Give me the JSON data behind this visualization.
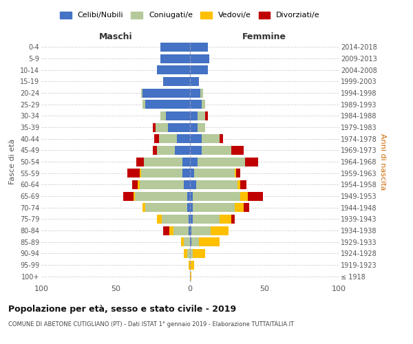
{
  "age_groups": [
    "100+",
    "95-99",
    "90-94",
    "85-89",
    "80-84",
    "75-79",
    "70-74",
    "65-69",
    "60-64",
    "55-59",
    "50-54",
    "45-49",
    "40-44",
    "35-39",
    "30-34",
    "25-29",
    "20-24",
    "15-19",
    "10-14",
    "5-9",
    "0-4"
  ],
  "birth_years": [
    "≤ 1918",
    "1919-1923",
    "1924-1928",
    "1929-1933",
    "1934-1938",
    "1939-1943",
    "1944-1948",
    "1949-1953",
    "1954-1958",
    "1959-1963",
    "1964-1968",
    "1969-1973",
    "1974-1978",
    "1979-1983",
    "1984-1988",
    "1989-1993",
    "1994-1998",
    "1999-2003",
    "2004-2008",
    "2009-2013",
    "2014-2018"
  ],
  "male": {
    "celibi": [
      0,
      0,
      0,
      0,
      1,
      1,
      2,
      2,
      4,
      5,
      5,
      10,
      9,
      15,
      16,
      30,
      32,
      18,
      22,
      20,
      20
    ],
    "coniugati": [
      0,
      0,
      2,
      4,
      10,
      18,
      28,
      35,
      30,
      28,
      26,
      12,
      12,
      8,
      4,
      2,
      1,
      0,
      0,
      0,
      0
    ],
    "vedovi": [
      0,
      1,
      2,
      2,
      3,
      3,
      2,
      1,
      1,
      1,
      0,
      0,
      0,
      0,
      0,
      0,
      0,
      0,
      0,
      0,
      0
    ],
    "divorziati": [
      0,
      0,
      0,
      0,
      4,
      0,
      0,
      7,
      4,
      8,
      5,
      3,
      3,
      2,
      0,
      0,
      0,
      0,
      0,
      0,
      0
    ]
  },
  "female": {
    "nubili": [
      0,
      0,
      0,
      1,
      1,
      2,
      2,
      2,
      4,
      3,
      5,
      8,
      8,
      5,
      5,
      8,
      7,
      6,
      12,
      13,
      12
    ],
    "coniugate": [
      0,
      0,
      2,
      5,
      13,
      18,
      28,
      32,
      28,
      27,
      32,
      20,
      12,
      5,
      5,
      2,
      2,
      0,
      0,
      0,
      0
    ],
    "vedove": [
      1,
      3,
      8,
      14,
      12,
      8,
      6,
      5,
      2,
      1,
      0,
      0,
      0,
      0,
      0,
      0,
      0,
      0,
      0,
      0,
      0
    ],
    "divorziate": [
      0,
      0,
      0,
      0,
      0,
      2,
      4,
      10,
      4,
      3,
      9,
      8,
      2,
      0,
      2,
      0,
      0,
      0,
      0,
      0,
      0
    ]
  },
  "colors": {
    "celibi": "#4472c4",
    "coniugati": "#b5c99a",
    "vedovi": "#ffc000",
    "divorziati": "#c00000"
  },
  "title": "Popolazione per età, sesso e stato civile - 2019",
  "subtitle": "COMUNE DI ABETONE CUTIGLIANO (PT) - Dati ISTAT 1° gennaio 2019 - Elaborazione TUTTAITALIA.IT",
  "xlabel_left": "Maschi",
  "xlabel_right": "Femmine",
  "ylabel_left": "Fasce di età",
  "ylabel_right": "Anni di nascita",
  "xlim": 100,
  "bg_color": "#ffffff",
  "grid_color": "#cccccc",
  "legend_labels": [
    "Celibi/Nubili",
    "Coniugati/e",
    "Vedovi/e",
    "Divorziati/e"
  ]
}
